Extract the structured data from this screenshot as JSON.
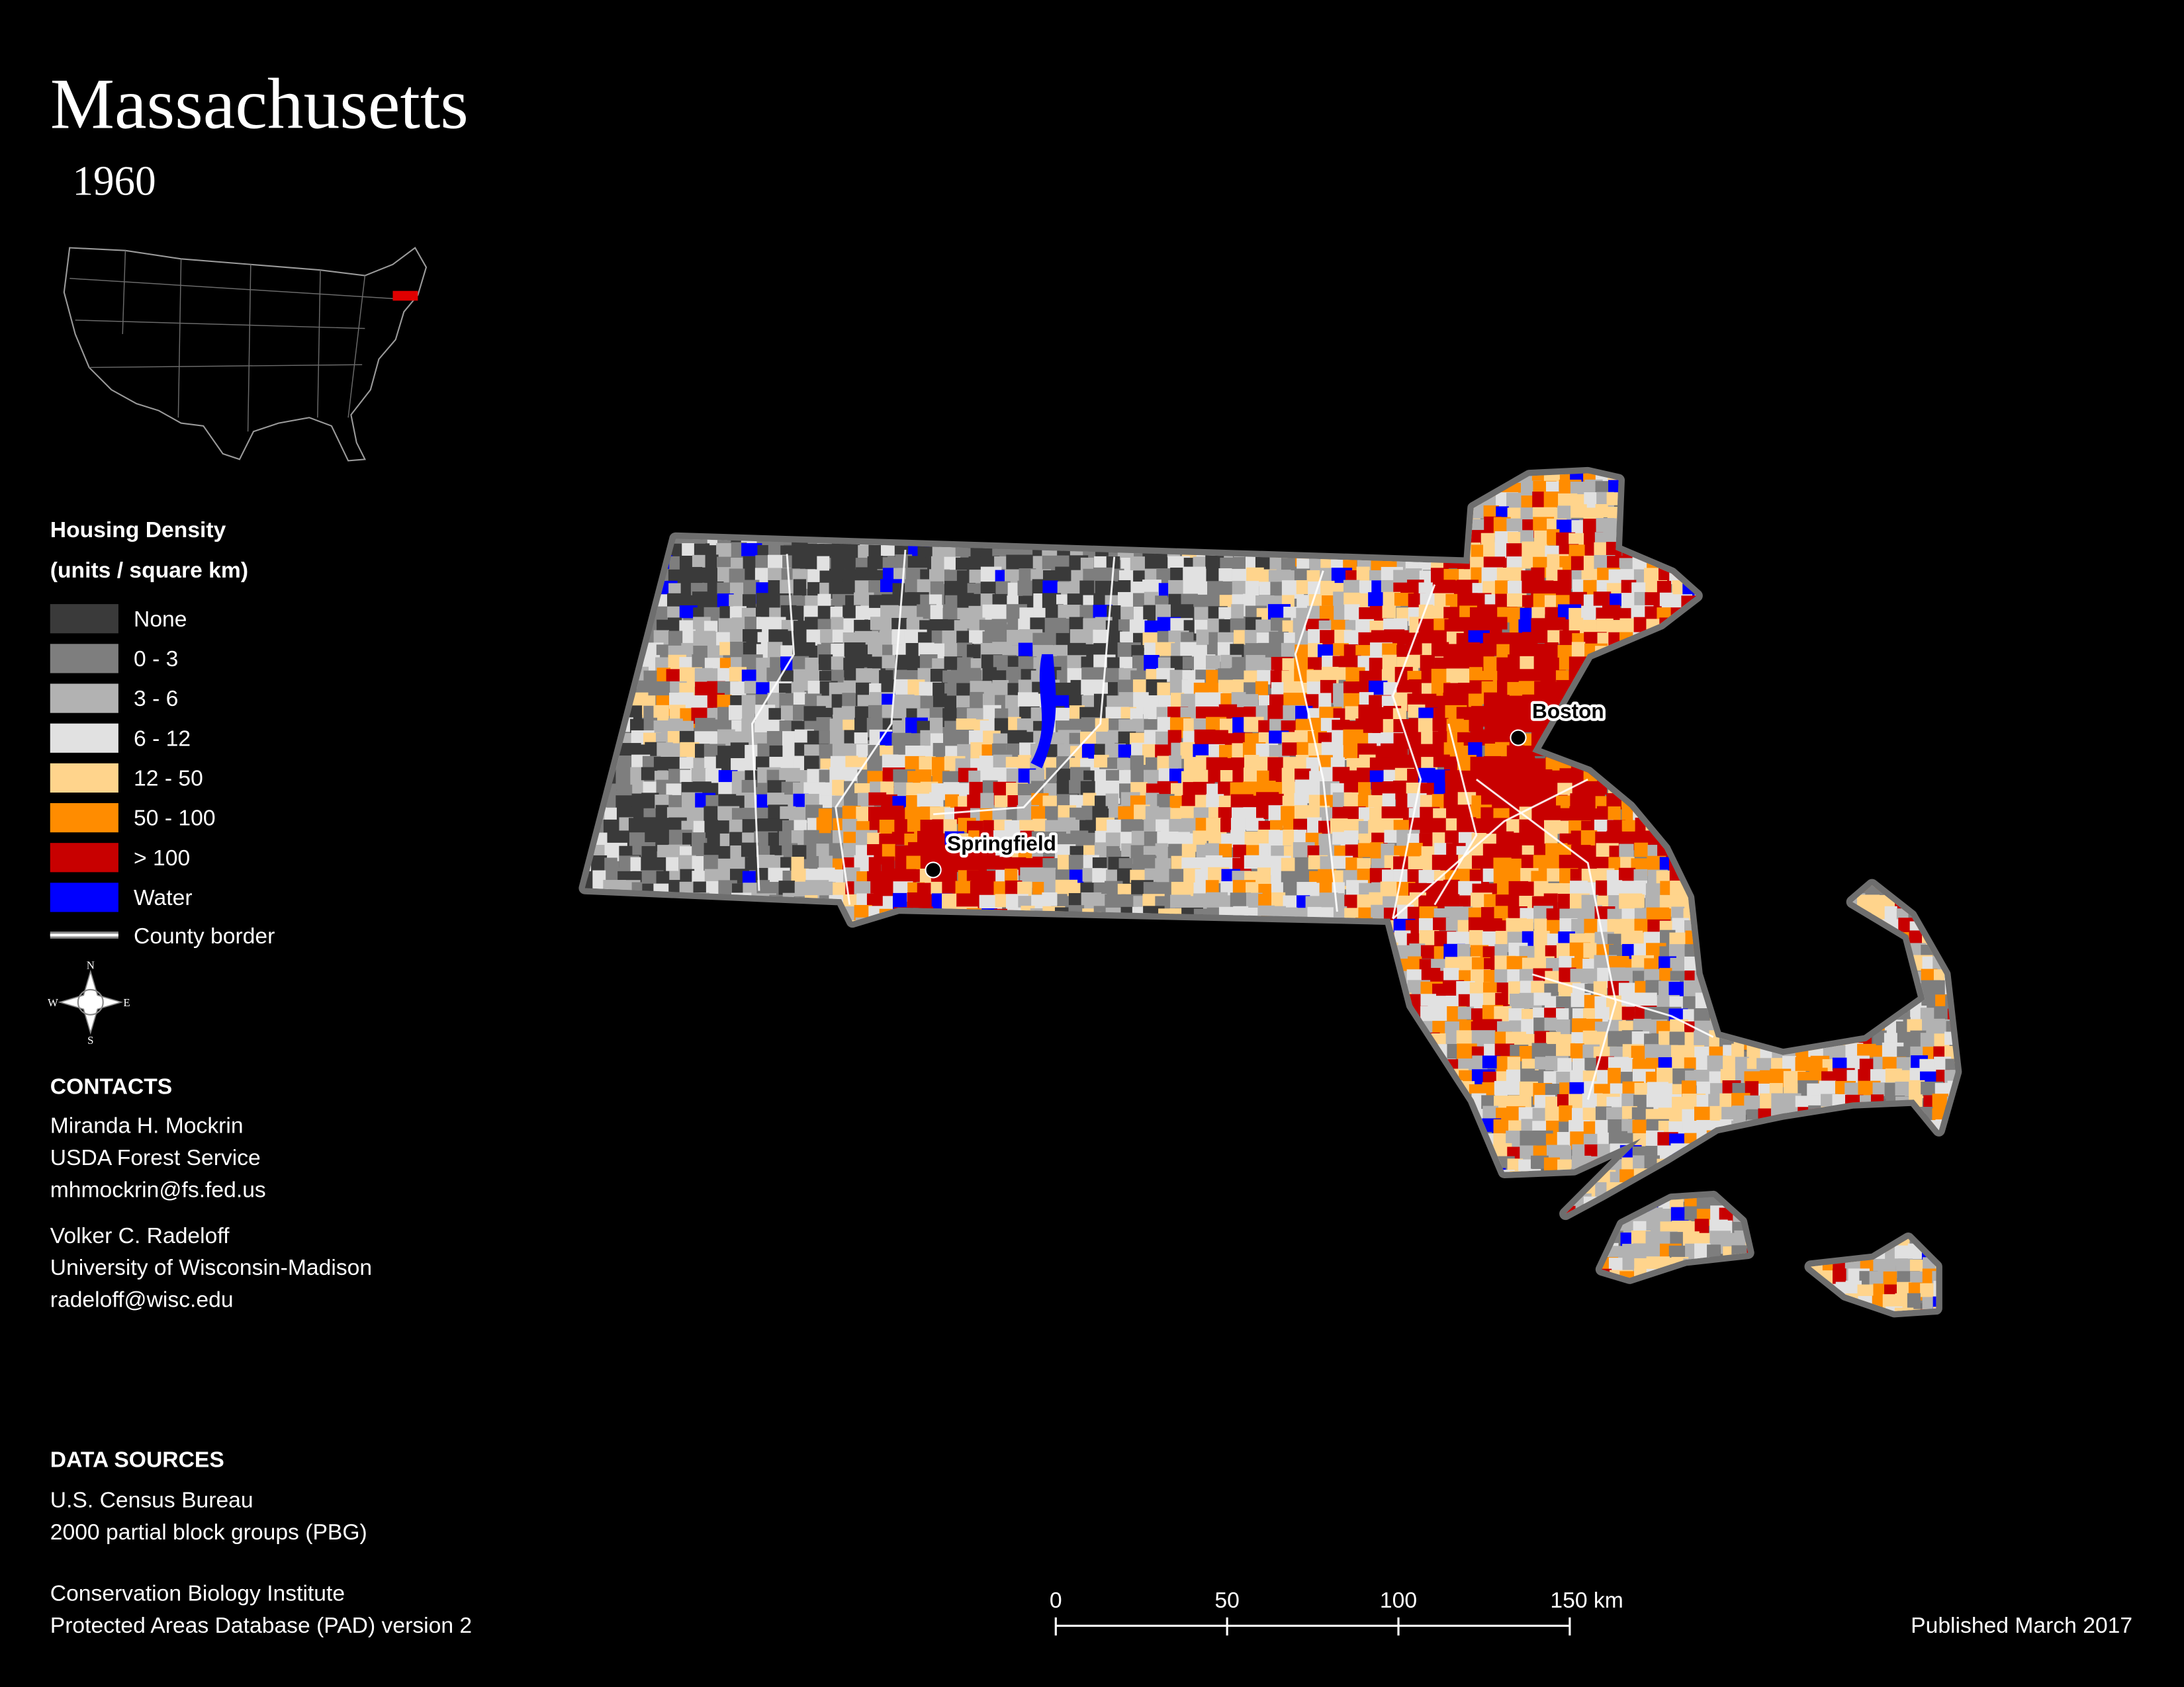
{
  "header": {
    "title": "Massachusetts",
    "year": "1960"
  },
  "legend": {
    "title": "Housing Density",
    "subtitle": "(units / square km)",
    "items": [
      {
        "label": "None",
        "color": "#3a3a3a"
      },
      {
        "label": "0 - 3",
        "color": "#7e7e7e"
      },
      {
        "label": "3 - 6",
        "color": "#b2b2b2"
      },
      {
        "label": "6 - 12",
        "color": "#e1e1e1"
      },
      {
        "label": "12 - 50",
        "color": "#ffd48c"
      },
      {
        "label": "50 - 100",
        "color": "#ff8c00"
      },
      {
        "label": "> 100",
        "color": "#c80000"
      },
      {
        "label": "Water",
        "color": "#0000ff"
      }
    ],
    "border": {
      "label": "County border",
      "color": "#ffffff"
    }
  },
  "compass": {
    "n": "N",
    "s": "S",
    "e": "E",
    "w": "W"
  },
  "contacts": {
    "heading": "CONTACTS",
    "people": [
      [
        "Miranda H. Mockrin",
        "USDA Forest Service",
        "mhmockrin@fs.fed.us"
      ],
      [
        "Volker C. Radeloff",
        "University of Wisconsin-Madison",
        "radeloff@wisc.edu"
      ]
    ]
  },
  "data_sources": {
    "heading": "DATA SOURCES",
    "sources": [
      [
        "U.S. Census Bureau",
        "2000 partial block groups (PBG)"
      ],
      [
        "Conservation Biology Institute",
        "Protected Areas Database (PAD) version 2"
      ]
    ]
  },
  "map": {
    "cities": [
      "Springfield",
      "Boston"
    ]
  },
  "scale_bar": {
    "labels": [
      "0",
      "50",
      "100",
      "150 km"
    ]
  },
  "footer": {
    "published": "Published March 2017"
  }
}
